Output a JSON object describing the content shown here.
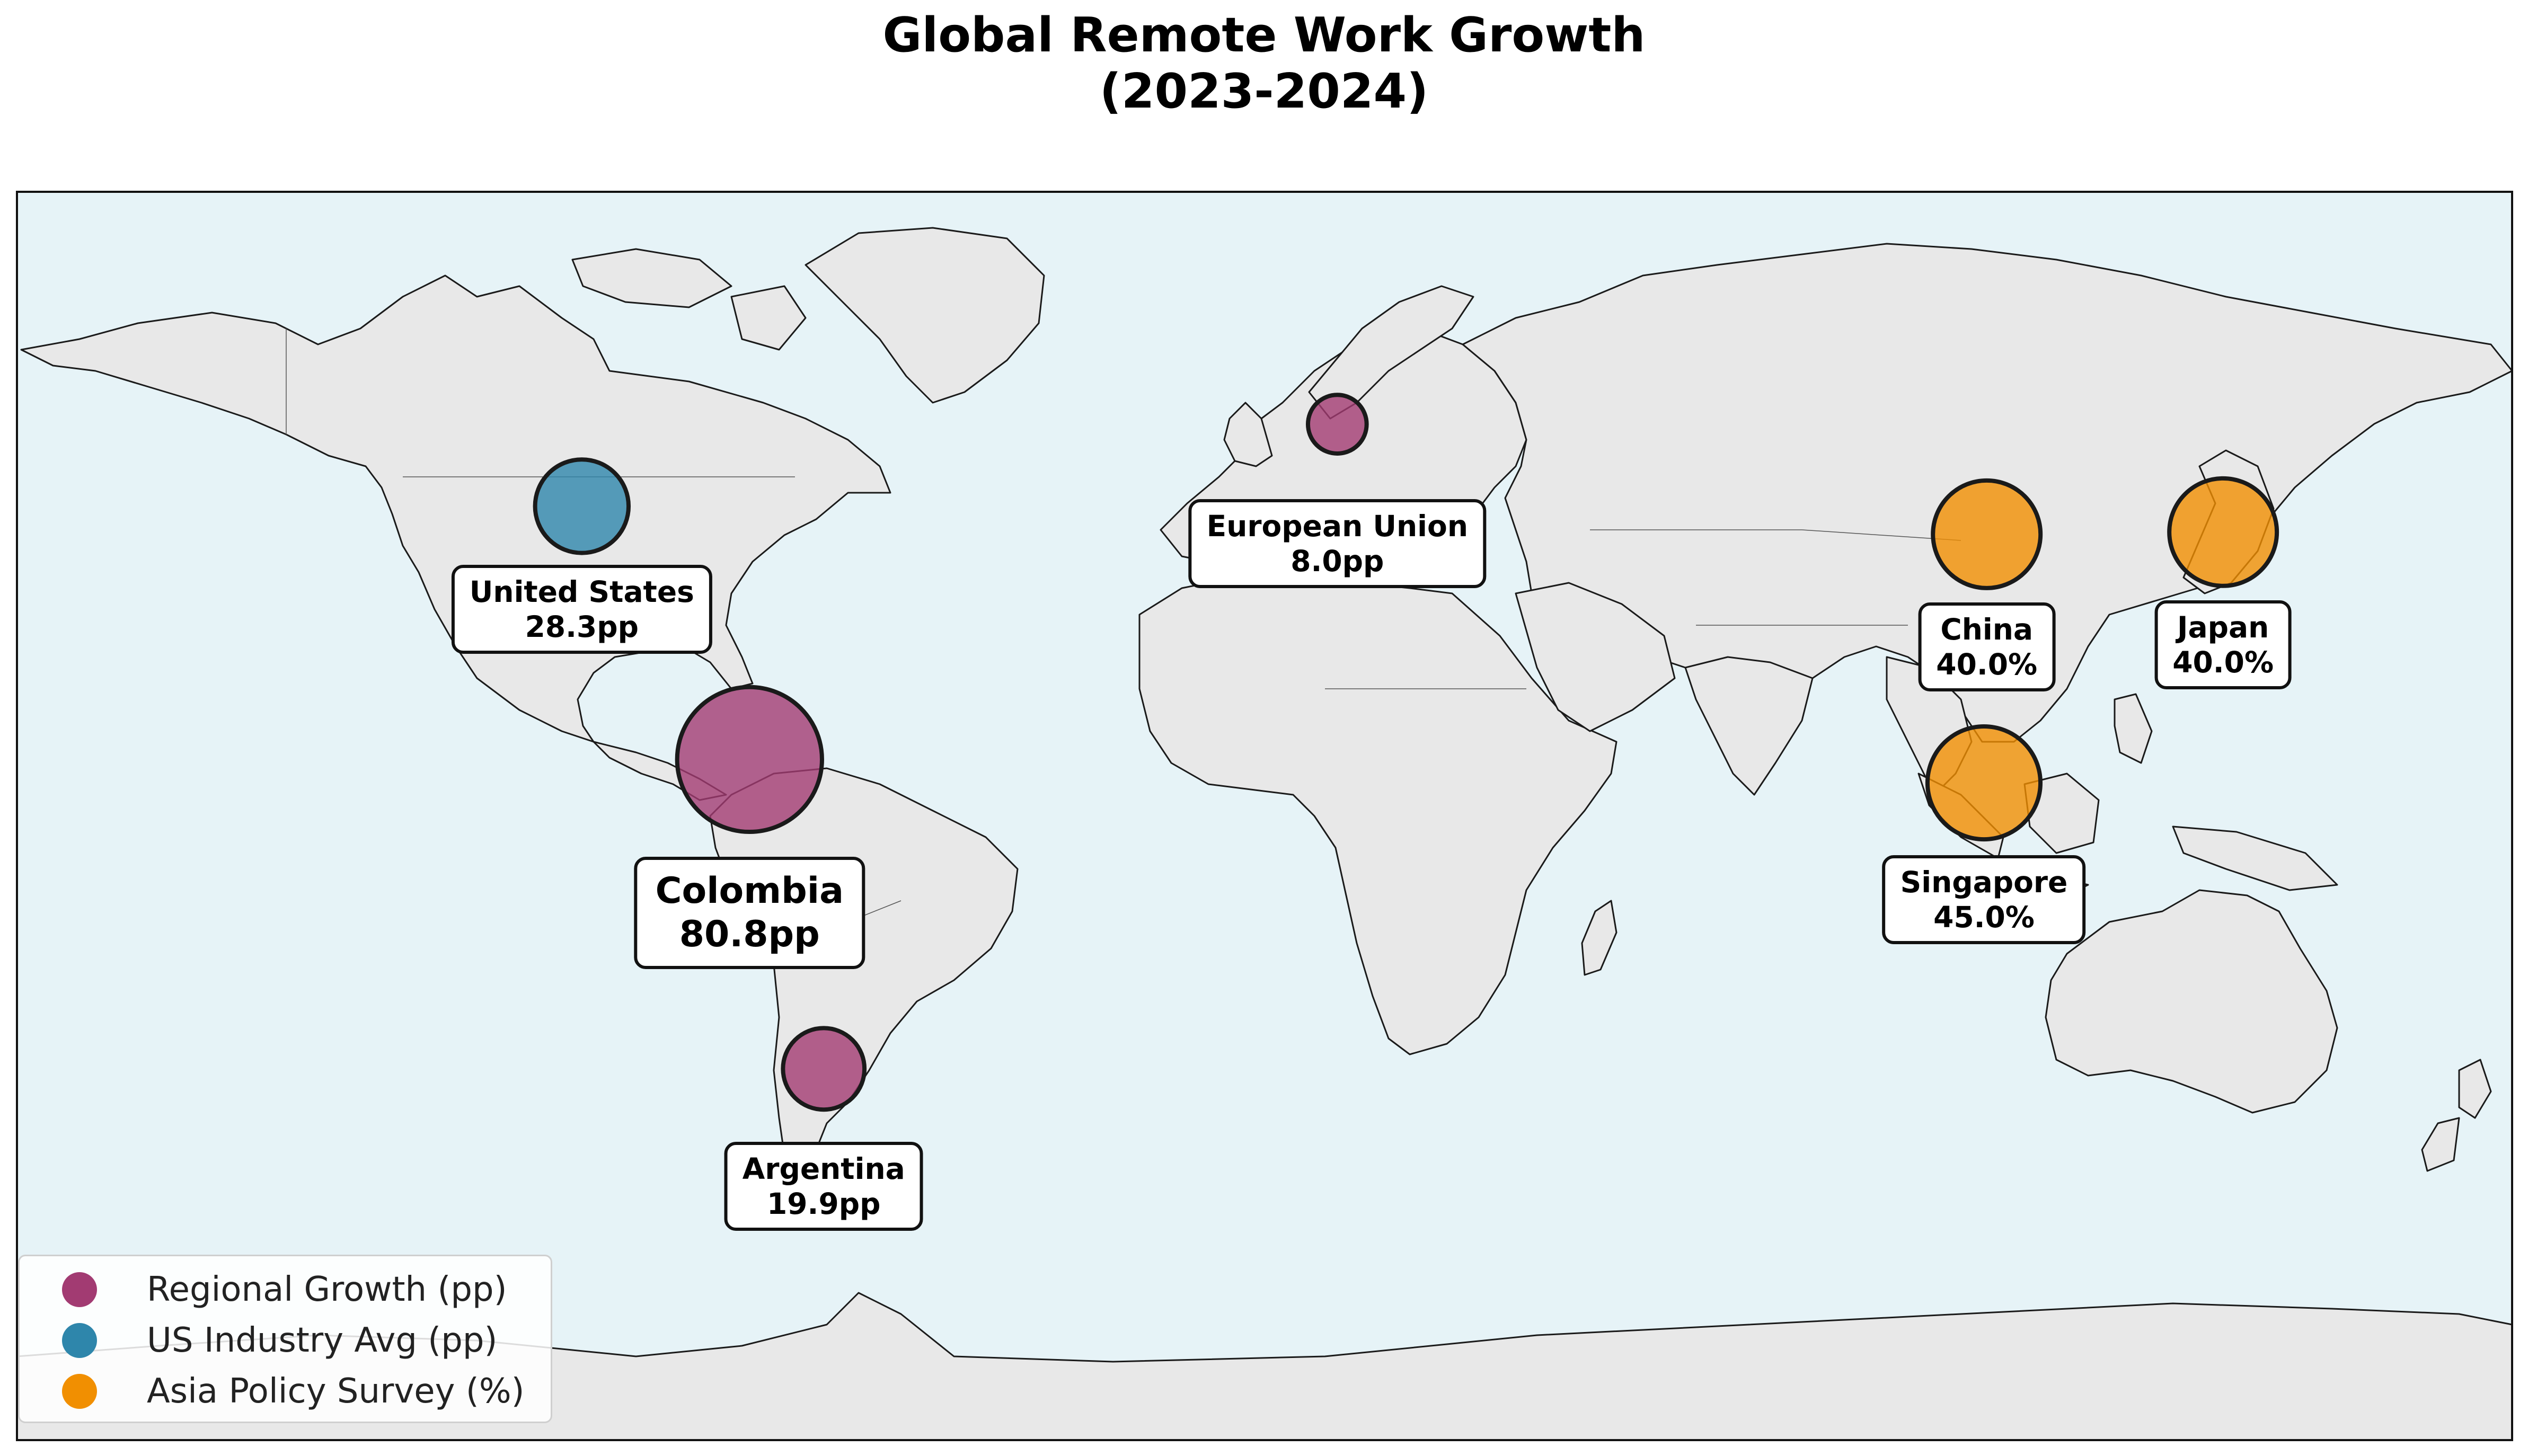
{
  "title": {
    "line1": "Global Remote Work Growth",
    "line2": "(2023-2024)"
  },
  "colors": {
    "ocean": "#e6f3f7",
    "land": "#e8e8e8",
    "border": "#1a1a1a",
    "regional": "#a23b72",
    "us_industry": "#2e86ab",
    "asia_policy": "#f18f01"
  },
  "markers": [
    {
      "id": "united-states",
      "name": "United States",
      "value": "28.3pp",
      "series": "us_industry",
      "lon": -98.5,
      "lat": 39.8,
      "magnitude": 28.3
    },
    {
      "id": "colombia",
      "name": "Colombia",
      "value": "80.8pp",
      "series": "regional",
      "lon": -74.3,
      "lat": 4.6,
      "magnitude": 80.8
    },
    {
      "id": "argentina",
      "name": "Argentina",
      "value": "19.9pp",
      "series": "regional",
      "lon": -63.6,
      "lat": -38.4,
      "magnitude": 19.9
    },
    {
      "id": "european-union",
      "name": "European Union",
      "value": "8.0pp",
      "series": "regional",
      "lon": 10.5,
      "lat": 51.2,
      "magnitude": 8.0
    },
    {
      "id": "china",
      "name": "China",
      "value": "40.0%",
      "series": "asia_policy",
      "lon": 104.2,
      "lat": 35.9,
      "magnitude": 40.0
    },
    {
      "id": "japan",
      "name": "Japan",
      "value": "40.0%",
      "series": "asia_policy",
      "lon": 138.3,
      "lat": 36.2,
      "magnitude": 40.0
    },
    {
      "id": "singapore",
      "name": "Singapore",
      "value": "45.0%",
      "series": "asia_policy",
      "lon": 103.8,
      "lat": 1.35,
      "magnitude": 45.0
    }
  ],
  "legend": {
    "items": [
      {
        "label": "Regional Growth (pp)",
        "series": "regional"
      },
      {
        "label": "US Industry Avg (pp)",
        "series": "us_industry"
      },
      {
        "label": "Asia Policy Survey (%)",
        "series": "asia_policy"
      }
    ]
  }
}
